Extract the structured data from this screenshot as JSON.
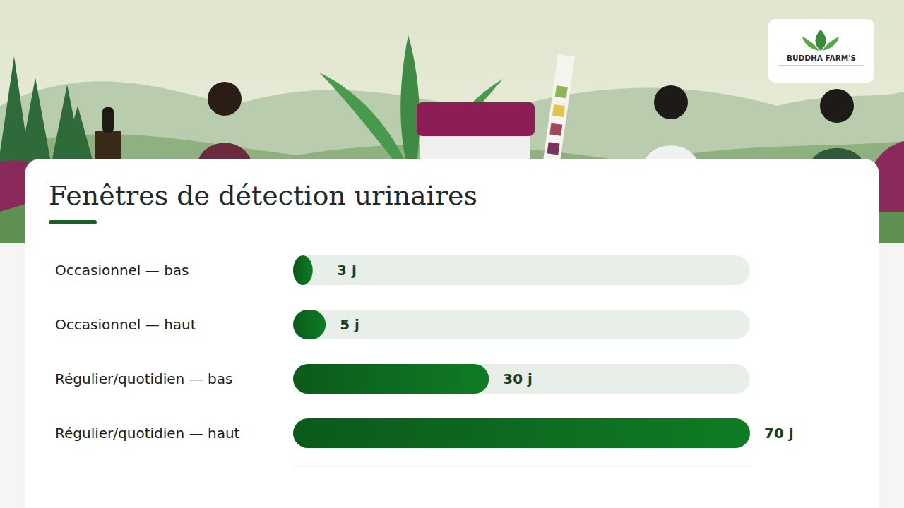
{
  "chart_data": {
    "type": "bar",
    "orientation": "horizontal",
    "title": "Fenêtres de détection urinaires",
    "categories": [
      "Occasionnel — bas",
      "Occasionnel — haut",
      "Régulier/quotidien — bas",
      "Régulier/quotidien — haut"
    ],
    "values": [
      3,
      5,
      30,
      70
    ],
    "value_labels": [
      "3 j",
      "5 j",
      "30 j",
      "70 j"
    ],
    "data_labels": true,
    "color": "#0b5a1a",
    "xlim": [
      0,
      70
    ],
    "xticks": [],
    "tick_labels": false,
    "grid": false
  },
  "brand": "BUDDHA FARM'S"
}
